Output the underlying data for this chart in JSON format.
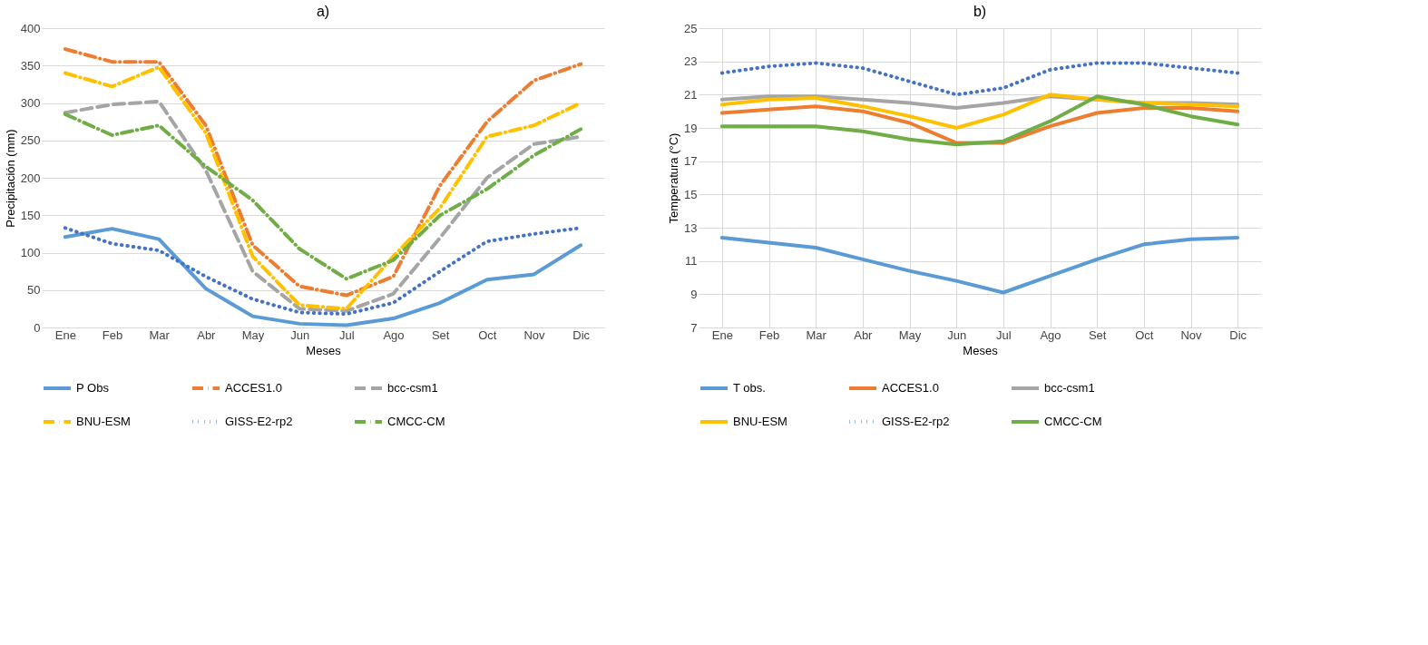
{
  "chart_data": [
    {
      "type": "line",
      "title": "a)",
      "xlabel": "Meses",
      "ylabel": "Precipitación (mm)",
      "categories": [
        "Ene",
        "Feb",
        "Mar",
        "Abr",
        "May",
        "Jun",
        "Jul",
        "Ago",
        "Set",
        "Oct",
        "Nov",
        "Dic"
      ],
      "ylim": [
        0,
        400
      ],
      "yticks": [
        0,
        50,
        100,
        150,
        200,
        250,
        300,
        350,
        400
      ],
      "grid": "y",
      "legend": "bottom",
      "marker": "none",
      "series": [
        {
          "name": "P Obs",
          "color": "#5b9bd5",
          "line_style": "solid",
          "values": [
            121,
            132,
            118,
            52,
            15,
            5,
            3,
            12,
            33,
            64,
            71,
            110
          ]
        },
        {
          "name": "ACCES1.0",
          "color": "#ed7d31",
          "line_style": "dashdot",
          "values": [
            372,
            355,
            355,
            270,
            110,
            55,
            43,
            68,
            190,
            275,
            330,
            352
          ]
        },
        {
          "name": "bcc-csm1",
          "color": "#a5a5a5",
          "line_style": "dashed",
          "values": [
            287,
            298,
            302,
            210,
            75,
            25,
            22,
            45,
            120,
            200,
            245,
            255
          ]
        },
        {
          "name": "BNU-ESM",
          "color": "#ffc000",
          "line_style": "dashdot",
          "values": [
            340,
            322,
            348,
            260,
            95,
            30,
            25,
            95,
            160,
            255,
            270,
            300
          ]
        },
        {
          "name": "GISS-E2-rp2",
          "color": "#4472c4",
          "line_style": "dotted",
          "values": [
            133,
            112,
            103,
            68,
            38,
            20,
            18,
            33,
            75,
            115,
            125,
            133
          ]
        },
        {
          "name": "CMCC-CM",
          "color": "#70ad47",
          "line_style": "dashdot",
          "values": [
            285,
            257,
            270,
            215,
            170,
            105,
            65,
            90,
            150,
            185,
            230,
            265
          ]
        }
      ]
    },
    {
      "type": "line",
      "title": "b)",
      "xlabel": "Meses",
      "ylabel": "Temperatura (°C)",
      "categories": [
        "Ene",
        "Feb",
        "Mar",
        "Abr",
        "May",
        "Jun",
        "Jul",
        "Ago",
        "Set",
        "Oct",
        "Nov",
        "Dic"
      ],
      "ylim": [
        7,
        25
      ],
      "yticks": [
        7,
        9,
        11,
        13,
        15,
        17,
        19,
        21,
        23,
        25
      ],
      "grid": true,
      "legend": "bottom",
      "marker": "none",
      "series": [
        {
          "name": "T obs.",
          "color": "#5b9bd5",
          "line_style": "solid",
          "values": [
            12.4,
            12.1,
            11.8,
            11.1,
            10.4,
            9.8,
            9.1,
            10.1,
            11.1,
            12.0,
            12.3,
            12.4
          ]
        },
        {
          "name": "ACCES1.0",
          "color": "#ed7d31",
          "line_style": "solid",
          "values": [
            19.9,
            20.1,
            20.3,
            20.0,
            19.3,
            18.1,
            18.1,
            19.1,
            19.9,
            20.2,
            20.2,
            20.0
          ]
        },
        {
          "name": "bcc-csm1",
          "color": "#a5a5a5",
          "line_style": "solid",
          "values": [
            20.7,
            20.9,
            20.9,
            20.7,
            20.5,
            20.2,
            20.5,
            20.9,
            20.7,
            20.5,
            20.5,
            20.4
          ]
        },
        {
          "name": "BNU-ESM",
          "color": "#ffc000",
          "line_style": "solid",
          "values": [
            20.4,
            20.7,
            20.8,
            20.3,
            19.7,
            19.0,
            19.8,
            21.0,
            20.7,
            20.5,
            20.4,
            20.3
          ]
        },
        {
          "name": "GISS-E2-rp2",
          "color": "#4472c4",
          "line_style": "dotted",
          "values": [
            22.3,
            22.7,
            22.9,
            22.6,
            21.8,
            21.0,
            21.4,
            22.5,
            22.9,
            22.9,
            22.6,
            22.3
          ]
        },
        {
          "name": "CMCC-CM",
          "color": "#70ad47",
          "line_style": "solid",
          "values": [
            19.1,
            19.1,
            19.1,
            18.8,
            18.3,
            18.0,
            18.2,
            19.4,
            20.9,
            20.4,
            19.7,
            19.2
          ]
        }
      ]
    }
  ]
}
